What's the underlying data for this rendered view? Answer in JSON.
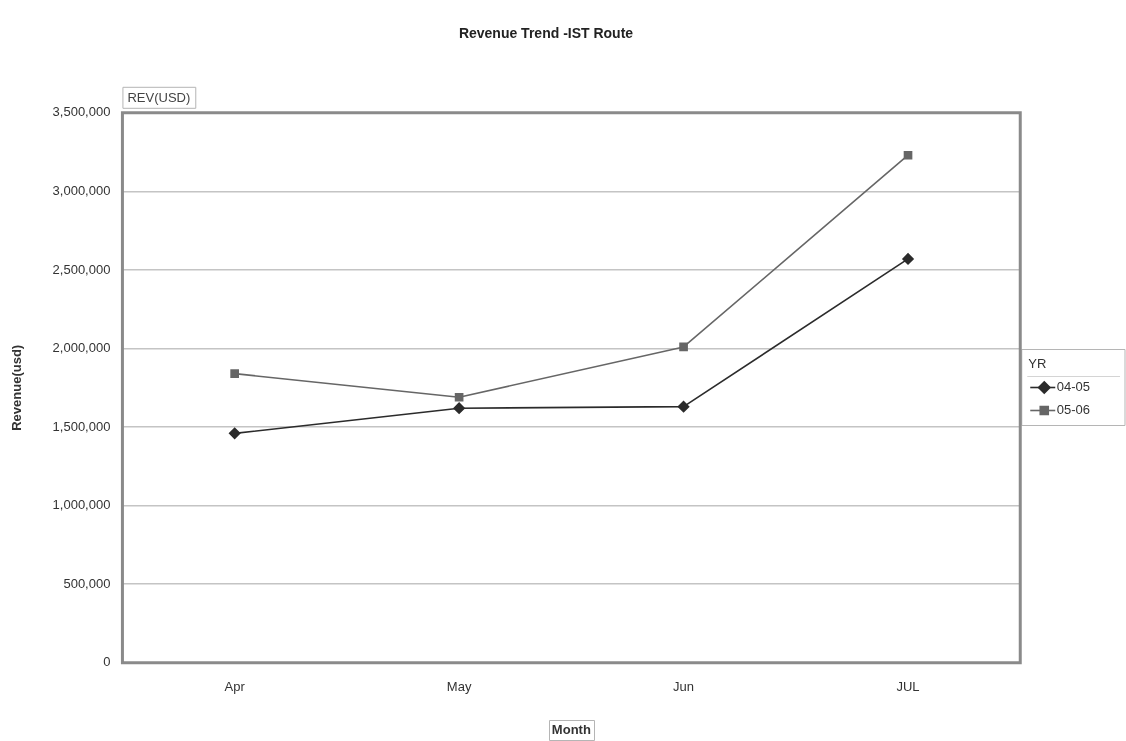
{
  "chart_data": {
    "type": "line",
    "title": "Revenue Trend -IST Route",
    "xlabel": "Month",
    "ylabel": "Revenue(usd)",
    "legend_title": "YR",
    "annotations": [
      "REV(USD)"
    ],
    "categories": [
      "Apr",
      "May",
      "Jun",
      "JUL"
    ],
    "series": [
      {
        "name": "04-05",
        "color": "#2b2b2b",
        "marker": "diamond",
        "values": [
          1460000,
          1620000,
          1630000,
          2570000
        ]
      },
      {
        "name": "05-06",
        "color": "#666666",
        "marker": "square",
        "values": [
          1840000,
          1690000,
          2010000,
          3230000
        ]
      }
    ],
    "ylim": [
      0,
      3500000
    ],
    "yticks": [
      0,
      {
        "value": 500000,
        "label": "500,000"
      },
      {
        "value": 1000000,
        "label": "1,000,000"
      },
      {
        "value": 1500000,
        "label": "1,500,000"
      },
      {
        "value": 2000000,
        "label": "2,000,000"
      },
      {
        "value": 2500000,
        "label": "2,500,000"
      },
      {
        "value": 3000000,
        "label": "3,000,000"
      },
      {
        "value": 3500000,
        "label": "3,500,000"
      }
    ],
    "grid": "y",
    "legend": "right"
  }
}
